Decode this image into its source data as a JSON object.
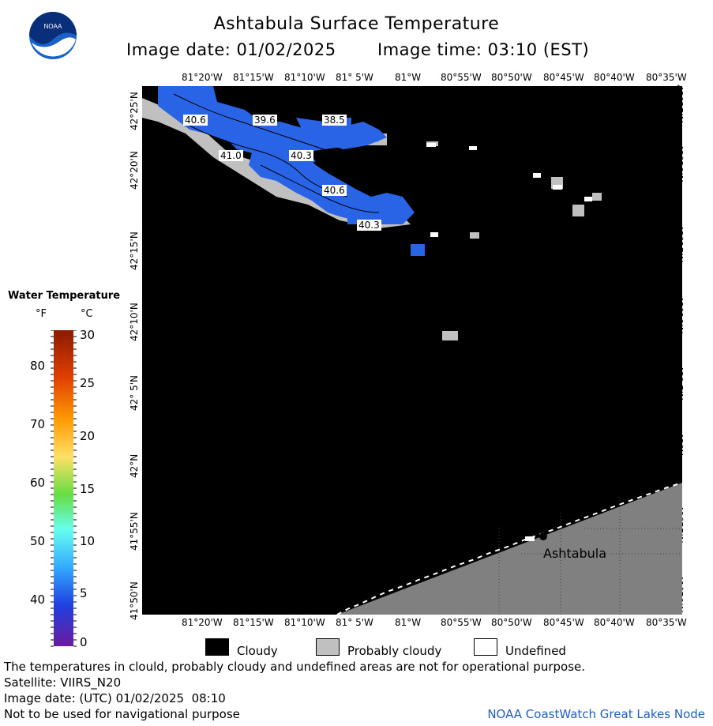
{
  "header": {
    "title": "Ashtabula Surface Temperature",
    "image_date": "Image date: 01/02/2025",
    "image_time": "Image time: 03:10 (EST)"
  },
  "logo": {
    "text": "NOAA"
  },
  "map": {
    "lon_labels": [
      "81°20'W",
      "81°15'W",
      "81°10'W",
      "81° 5'W",
      "81°W",
      "80°55'W",
      "80°50'W",
      "80°45'W",
      "80°40'W",
      "80°35'W"
    ],
    "lat_labels": [
      "42°25'N",
      "42°20'N",
      "42°15'N",
      "42°10'N",
      "42° 5'N",
      "42°N",
      "41°55'N",
      "41°50'N"
    ],
    "temp_labels": [
      "40.6",
      "39.6",
      "38.5",
      "41.0",
      "40.3",
      "40.6",
      "40.3"
    ],
    "place_label": "Ashtabula",
    "colors": {
      "water": "#000000",
      "land": "#808080",
      "probably_cloudy": "#c0c0c0",
      "temp_fill": "#2a64e6"
    }
  },
  "legend": {
    "title": "Water Temperature",
    "unit_f": "°F",
    "unit_c": "°C",
    "f_ticks": [
      "80",
      "70",
      "60",
      "50",
      "40"
    ],
    "c_ticks": [
      "30",
      "25",
      "20",
      "15",
      "10",
      "5",
      "0"
    ],
    "items": [
      {
        "label": "Cloudy",
        "color": "#000000"
      },
      {
        "label": "Probably cloudy",
        "color": "#c0c0c0"
      },
      {
        "label": "Undefined",
        "color": "#ffffff"
      }
    ]
  },
  "footer": {
    "disclaimer": "The temperatures in clould, probably cloudy and undefined areas are not for operational purpose.",
    "satellite": "Satellite: VIIRS_N20",
    "utc_date": "Image date: (UTC) 01/02/2025  08:10",
    "nav_warning": "Not to be used for navigational purpose",
    "credit": "NOAA CoastWatch Great Lakes Node"
  }
}
